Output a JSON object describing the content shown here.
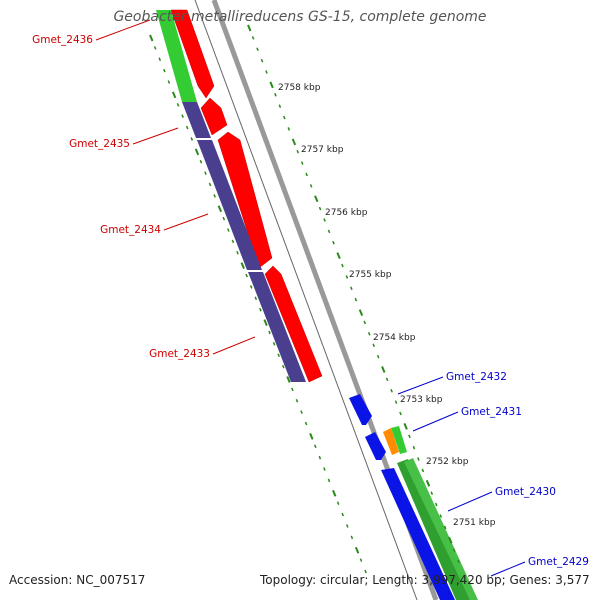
{
  "header": {
    "title": "Geobacter metallireducens GS-15, complete genome"
  },
  "footer": {
    "accession": "Accession: NC_007517",
    "topology": "Topology: circular; Length: 3,997,420 bp; Genes: 3,577"
  },
  "colors": {
    "forward_cds": "#ff0000",
    "reverse_cds": "#4a3f8f",
    "blue_cds": "#0a14e6",
    "green_feature": "#33cc33",
    "orange_feature": "#ff8c00",
    "backbone": "#888888",
    "ruler": "#2a8a1a",
    "label_red": "#cc0000",
    "label_blue": "#0000cc"
  },
  "ruler_ticks": [
    "2758 kbp",
    "2757 kbp",
    "2756 kbp",
    "2755 kbp",
    "2754 kbp",
    "2753 kbp",
    "2752 kbp",
    "2751 kbp"
  ],
  "gene_labels": [
    {
      "name": "Gmet_2436",
      "color": "red"
    },
    {
      "name": "Gmet_2435",
      "color": "red"
    },
    {
      "name": "Gmet_2434",
      "color": "red"
    },
    {
      "name": "Gmet_2433",
      "color": "red"
    },
    {
      "name": "Gmet_2432",
      "color": "blue"
    },
    {
      "name": "Gmet_2431",
      "color": "blue"
    },
    {
      "name": "Gmet_2430",
      "color": "blue"
    },
    {
      "name": "Gmet_2429",
      "color": "blue"
    }
  ]
}
